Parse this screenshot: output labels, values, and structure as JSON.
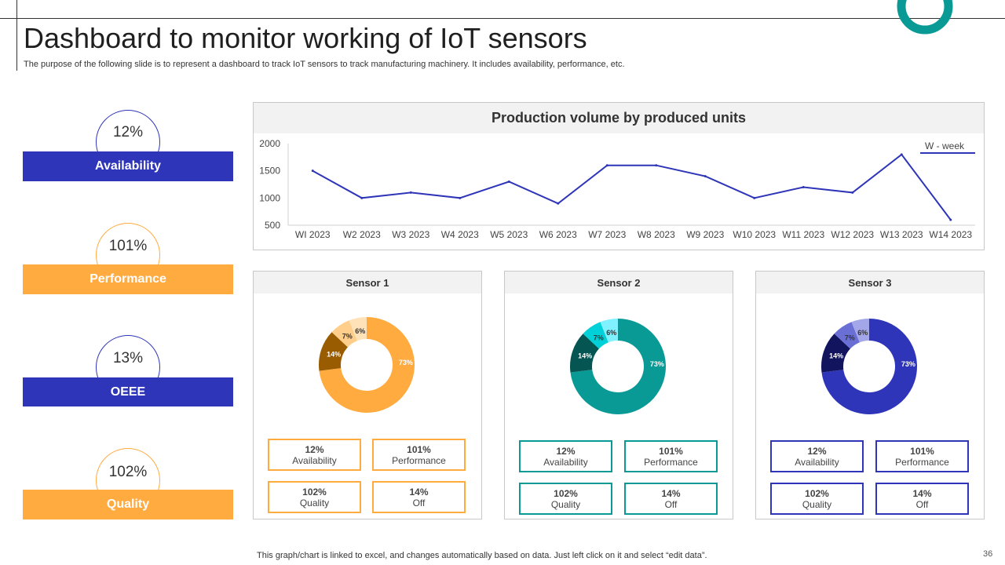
{
  "slide": {
    "title": "Dashboard to monitor working of IoT sensors",
    "subtitle": "The purpose of the following slide is to represent a dashboard to track IoT sensors to track manufacturing machinery. It includes availability, performance, etc.",
    "footer_note": "This graph/chart is linked to excel, and changes automatically based on data. Just left click on it and select “edit data”.",
    "page_number": "36"
  },
  "colors": {
    "blue": "#2e35b8",
    "orange": "#ffab40",
    "teal": "#0a9a96"
  },
  "kpis": [
    {
      "value": "12%",
      "label": "Availability",
      "color": "#2e35b8"
    },
    {
      "value": "101%",
      "label": "Performance",
      "color": "#ffab40"
    },
    {
      "value": "13%",
      "label": "OEEE",
      "color": "#2e35b8"
    },
    {
      "value": "102%",
      "label": "Quality",
      "color": "#ffab40"
    }
  ],
  "chart_data": [
    {
      "type": "line",
      "title": "Production volume by  produced units",
      "legend": "W - week",
      "legend_position": "top-right",
      "categories": [
        "WI 2023",
        "W2 2023",
        "W3 2023",
        "W4 2023",
        "W5 2023",
        "W6 2023",
        "W7 2023",
        "W8 2023",
        "W9 2023",
        "W10 2023",
        "W11 2023",
        "W12 2023",
        "W13 2023",
        "W14 2023"
      ],
      "series": [
        {
          "name": "W - week",
          "values": [
            1500,
            1000,
            1100,
            1000,
            1300,
            900,
            1600,
            1600,
            1400,
            1000,
            1200,
            1100,
            1800,
            600
          ],
          "color": "#2e35b8"
        }
      ],
      "ylim": [
        500,
        2000
      ],
      "yticks": [
        "2000",
        "1500",
        "1000",
        "500"
      ],
      "grid": false
    },
    {
      "type": "pie",
      "title": "Sensor 1",
      "labels": [
        "73%",
        "14%",
        "7%",
        "6%"
      ],
      "values": [
        73,
        14,
        7,
        6
      ],
      "colors": [
        "#ffab40",
        "#9a5c00",
        "#ffce8a",
        "#ffe2b8"
      ]
    },
    {
      "type": "pie",
      "title": "Sensor 2",
      "labels": [
        "73%",
        "14%",
        "7%",
        "6%"
      ],
      "values": [
        73,
        14,
        7,
        6
      ],
      "colors": [
        "#0a9a96",
        "#055552",
        "#00d0d8",
        "#7ff1ff"
      ]
    },
    {
      "type": "pie",
      "title": "Sensor 3",
      "labels": [
        "73%",
        "14%",
        "7%",
        "6%"
      ],
      "values": [
        73,
        14,
        7,
        6
      ],
      "colors": [
        "#2e35b8",
        "#12155e",
        "#6a6fd6",
        "#a3a6e8"
      ]
    }
  ],
  "sensors": [
    {
      "name": "Sensor 1",
      "stats": [
        {
          "value": "12%",
          "label": "Availability"
        },
        {
          "value": "101%",
          "label": "Performance"
        },
        {
          "value": "102%",
          "label": "Quality"
        },
        {
          "value": "14%",
          "label": "Off"
        }
      ]
    },
    {
      "name": "Sensor 2",
      "stats": [
        {
          "value": "12%",
          "label": "Availability"
        },
        {
          "value": "101%",
          "label": "Performance"
        },
        {
          "value": "102%",
          "label": "Quality"
        },
        {
          "value": "14%",
          "label": "Off"
        }
      ]
    },
    {
      "name": "Sensor 3",
      "stats": [
        {
          "value": "12%",
          "label": "Availability"
        },
        {
          "value": "101%",
          "label": "Performance"
        },
        {
          "value": "102%",
          "label": "Quality"
        },
        {
          "value": "14%",
          "label": "Off"
        }
      ]
    }
  ]
}
